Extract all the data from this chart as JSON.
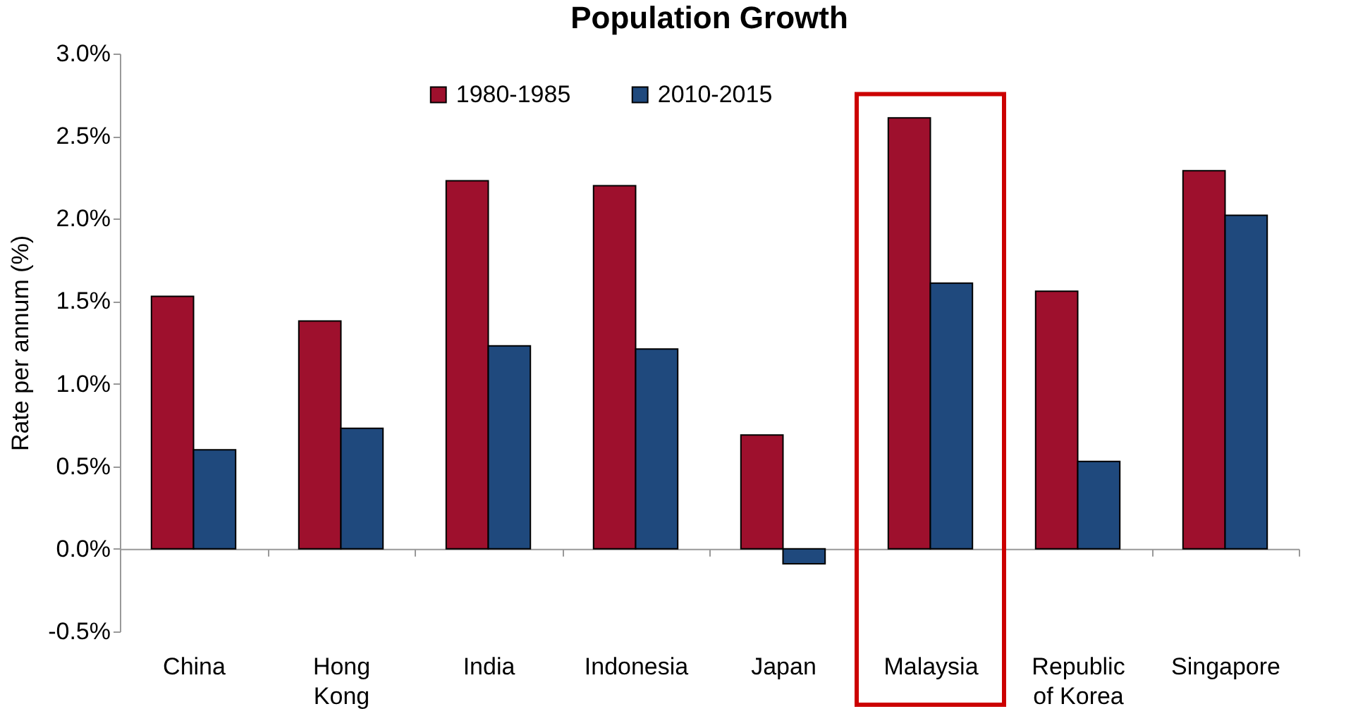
{
  "chart_data": {
    "type": "bar",
    "title": "Population Growth",
    "ylabel": "Rate per annum (%)",
    "categories": [
      "China",
      "Hong Kong",
      "India",
      "Indonesia",
      "Japan",
      "Malaysia",
      "Republic of Korea",
      "Singapore"
    ],
    "series": [
      {
        "name": "1980-1985",
        "color": "#9e102d",
        "values": [
          1.53,
          1.38,
          2.23,
          2.2,
          0.69,
          2.61,
          1.56,
          2.29
        ]
      },
      {
        "name": "2010-2015",
        "color": "#1f497d",
        "values": [
          0.6,
          0.73,
          1.23,
          1.21,
          -0.09,
          1.61,
          0.53,
          2.02
        ]
      }
    ],
    "ylim": [
      -0.5,
      3.0
    ],
    "yticks": [
      {
        "value": -0.5,
        "label": "-0.5%"
      },
      {
        "value": 0,
        "label": "0.0%"
      },
      {
        "value": 0.5,
        "label": "0.5%"
      },
      {
        "value": 1.0,
        "label": "1.0%"
      },
      {
        "value": 1.5,
        "label": "1.5%"
      },
      {
        "value": 2.0,
        "label": "2.0%"
      },
      {
        "value": 2.5,
        "label": "2.5%"
      },
      {
        "value": 3.0,
        "label": "3.0%"
      }
    ],
    "legend": "top"
  }
}
